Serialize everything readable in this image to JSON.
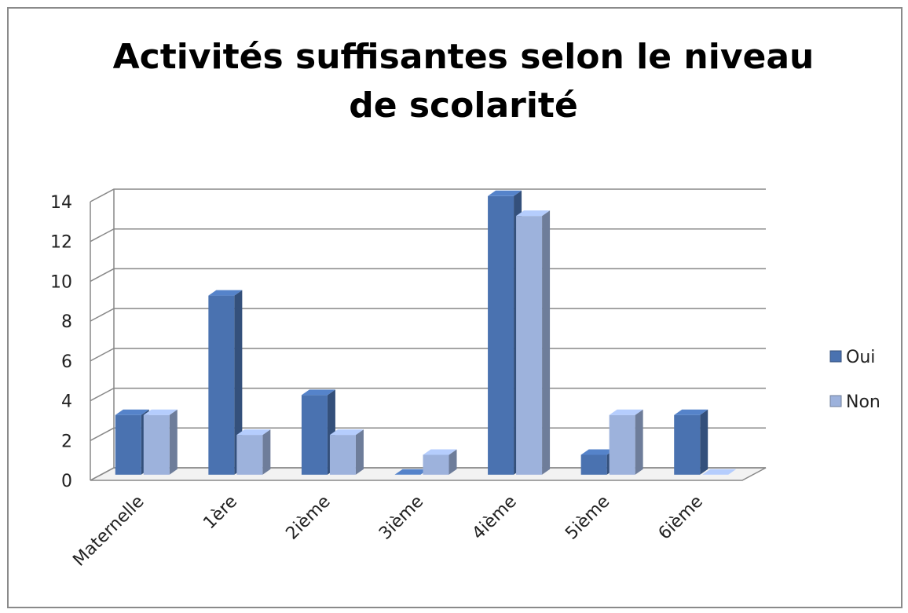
{
  "chart_data": {
    "type": "bar3d",
    "title": "Activités suffisantes selon le niveau de scolarité",
    "categories": [
      "Maternelle",
      "1ère",
      "2ième",
      "3ième",
      "4ième",
      "5ième",
      "6ième"
    ],
    "series": [
      {
        "name": "Oui",
        "color": "#4a72b0",
        "values": [
          3,
          9,
          4,
          0,
          14,
          1,
          3
        ]
      },
      {
        "name": "Non",
        "color": "#9db2dc",
        "values": [
          3,
          2,
          2,
          1,
          13,
          3,
          0
        ]
      }
    ],
    "ylim": [
      0,
      14
    ],
    "yticks": [
      0,
      2,
      4,
      6,
      8,
      10,
      12,
      14
    ],
    "grid": true,
    "legend": "right"
  }
}
